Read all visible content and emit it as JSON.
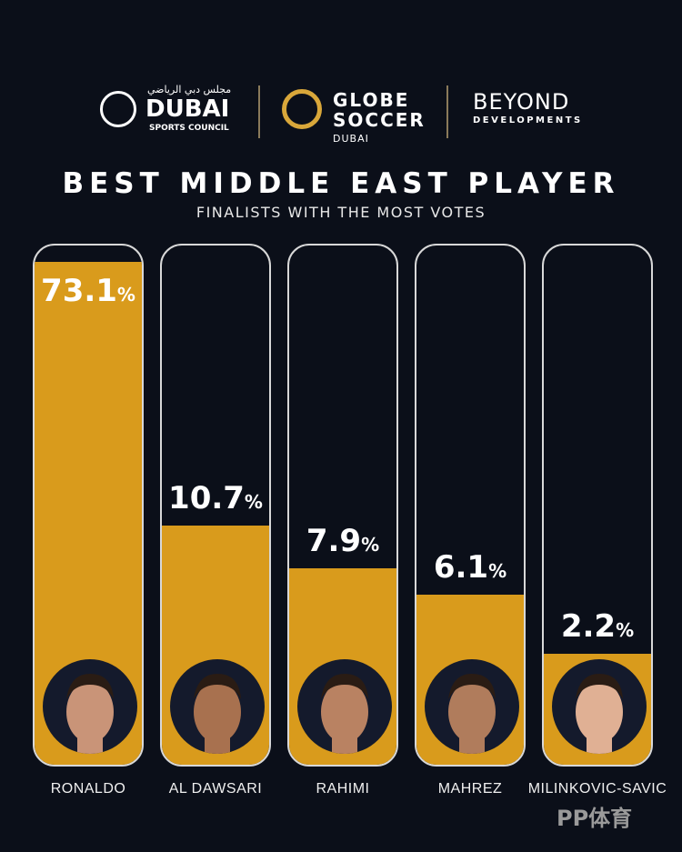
{
  "logos": {
    "dubai_sports_council": {
      "arabic": "مجلس دبي الرياضي",
      "name": "DUBAI",
      "sub": "SPORTS COUNCIL"
    },
    "globe_soccer": {
      "line1": "GLOBE",
      "line2": "SOCCER",
      "line3": "DUBAI"
    },
    "beyond": {
      "line1": "BEYOND",
      "line2": "DEVELOPMENTS"
    }
  },
  "chart_data": {
    "type": "bar",
    "title": "BEST MIDDLE EAST PLAYER",
    "subtitle": "FINALISTS WITH THE MOST VOTES",
    "categories": [
      "RONALDO",
      "AL DAWSARI",
      "RAHIMI",
      "MAHREZ",
      "MILINKOVIC-SAVIC"
    ],
    "values": [
      73.1,
      10.7,
      7.9,
      6.1,
      2.2
    ],
    "unit": "%",
    "colors": {
      "bar": "#d99b1c",
      "background": "#0b0f19",
      "border": "#d8d8d8"
    }
  },
  "watermark": "PP体育"
}
